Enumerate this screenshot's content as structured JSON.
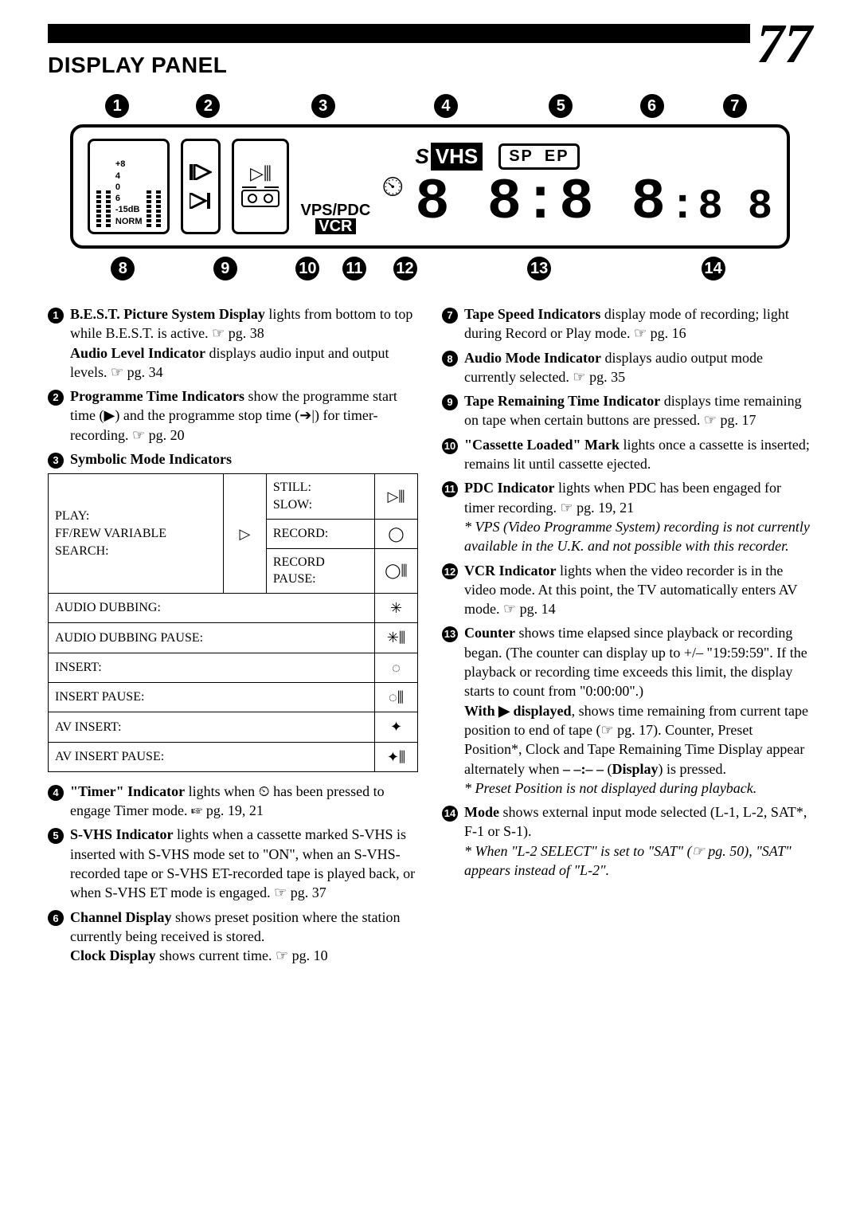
{
  "page_number": "77",
  "section_title": "DISPLAY PANEL",
  "diagram": {
    "top_callouts": [
      "1",
      "2",
      "3",
      "4",
      "5",
      "6",
      "7"
    ],
    "bottom_callouts": [
      "8",
      "9",
      "10",
      "11",
      "12",
      "13",
      "14"
    ],
    "level_labels": [
      "+8",
      "4",
      "0",
      "6",
      "-15dB",
      "NORM"
    ],
    "vps_pdc": "VPS/PDC",
    "vcr": "VCR",
    "svhs_s": "S",
    "svhs_vhs": "VHS",
    "sp": "SP",
    "ep": "EP",
    "digits_main": "8 8:8 8",
    "digits_right": "8 8",
    "colors": {
      "fg": "#000000",
      "bg": "#ffffff"
    }
  },
  "left_items": [
    {
      "num": "1",
      "body": "<span class=\"b\">B.E.S.T. Picture System Display</span> lights from bottom to top while B.E.S.T. is active. ☞ pg. 38<br><span class=\"b\">Audio Level Indicator</span> displays audio input and output levels. ☞ pg. 34"
    },
    {
      "num": "2",
      "body": "<span class=\"b\">Programme Time Indicators</span> show the programme start time (▶) and the programme stop time (➔|) for timer-recording. ☞ pg. 20"
    },
    {
      "num": "3",
      "body": "<span class=\"b\">Symbolic Mode Indicators</span>"
    }
  ],
  "mode_table": {
    "rows": [
      {
        "left": "PLAY:<br>FF/REW VARIABLE SEARCH:",
        "mid_rowspan": true,
        "mid": "▷",
        "right_rows": [
          {
            "label": "STILL:<br>SLOW:",
            "icon": "▷⫼"
          },
          {
            "label": "RECORD:",
            "icon": "◯"
          },
          {
            "label": "RECORD PAUSE:",
            "icon": "◯⫼"
          }
        ]
      },
      {
        "full": "AUDIO DUBBING:",
        "icon": "✳"
      },
      {
        "full": "AUDIO DUBBING PAUSE:",
        "icon": "✳⫼"
      },
      {
        "full": "INSERT:",
        "icon": "◌"
      },
      {
        "full": "INSERT PAUSE:",
        "icon": "◌⫼"
      },
      {
        "full": "AV INSERT:",
        "icon": "✦"
      },
      {
        "full": "AV INSERT PAUSE:",
        "icon": "✦⫼"
      }
    ]
  },
  "left_items_after": [
    {
      "num": "4",
      "body": "<span class=\"b\">\"Timer\" Indicator</span> lights when ⏲ has been pressed to engage Timer mode. ☞ pg. 19, 21"
    },
    {
      "num": "5",
      "body": "<span class=\"b\">S-VHS Indicator</span> lights when a cassette marked S-VHS is inserted with S-VHS mode set to \"ON\", when an S-VHS-recorded tape or S-VHS ET-recorded tape is played back, or when S-VHS ET mode is engaged. ☞ pg. 37"
    },
    {
      "num": "6",
      "body": "<span class=\"b\">Channel Display</span> shows preset position where the station currently being received is stored.<br><span class=\"b\">Clock Display</span> shows current time. ☞ pg. 10"
    }
  ],
  "right_items": [
    {
      "num": "7",
      "body": "<span class=\"b\">Tape Speed Indicators</span> display mode of recording; light during Record or Play mode. ☞ pg. 16"
    },
    {
      "num": "8",
      "body": "<span class=\"b\">Audio Mode Indicator</span> displays audio output mode currently selected. ☞ pg. 35"
    },
    {
      "num": "9",
      "body": "<span class=\"b\">Tape Remaining Time Indicator</span> displays time remaining on tape when certain buttons are pressed. ☞ pg. 17"
    },
    {
      "num": "10",
      "body": "<span class=\"b\">\"Cassette Loaded\" Mark</span> lights once a cassette is inserted; remains lit until cassette ejected."
    },
    {
      "num": "11",
      "body": "<span class=\"b\">PDC Indicator</span> lights when PDC has been engaged for timer recording. ☞ pg. 19, 21<br><span class=\"note-it\">* VPS (Video Programme System) recording is not currently available in the U.K. and not possible with this recorder.</span>"
    },
    {
      "num": "12",
      "body": "<span class=\"b\">VCR Indicator</span> lights when the video recorder is in the video mode. At this point, the TV automatically enters AV mode. ☞ pg. 14"
    },
    {
      "num": "13",
      "body": "<span class=\"b\">Counter</span> shows time elapsed since playback or recording began. (The counter can display up to +/– \"19:59:59\". If the playback or recording time exceeds this limit, the display starts to count from \"0:00:00\".)<br><span class=\"b\">With ▶ displayed</span>, shows time remaining from current tape position to end of tape (☞ pg. 17). Counter, Preset Position*, Clock and Tape Remaining Time Display appear alternately when <span class=\"b\">– –:– –</span> (<span class=\"b\">Display</span>) is pressed.<br><span class=\"note-it\">* Preset Position is not displayed during playback.</span>"
    },
    {
      "num": "14",
      "body": "<span class=\"b\">Mode</span> shows external input mode selected (L-1, L-2, SAT*, F-1 or S-1).<br><span class=\"note-it\">* When \"L-2 SELECT\" is set to \"SAT\" (☞ pg. 50), \"SAT\" appears instead of \"L-2\".</span>"
    }
  ]
}
